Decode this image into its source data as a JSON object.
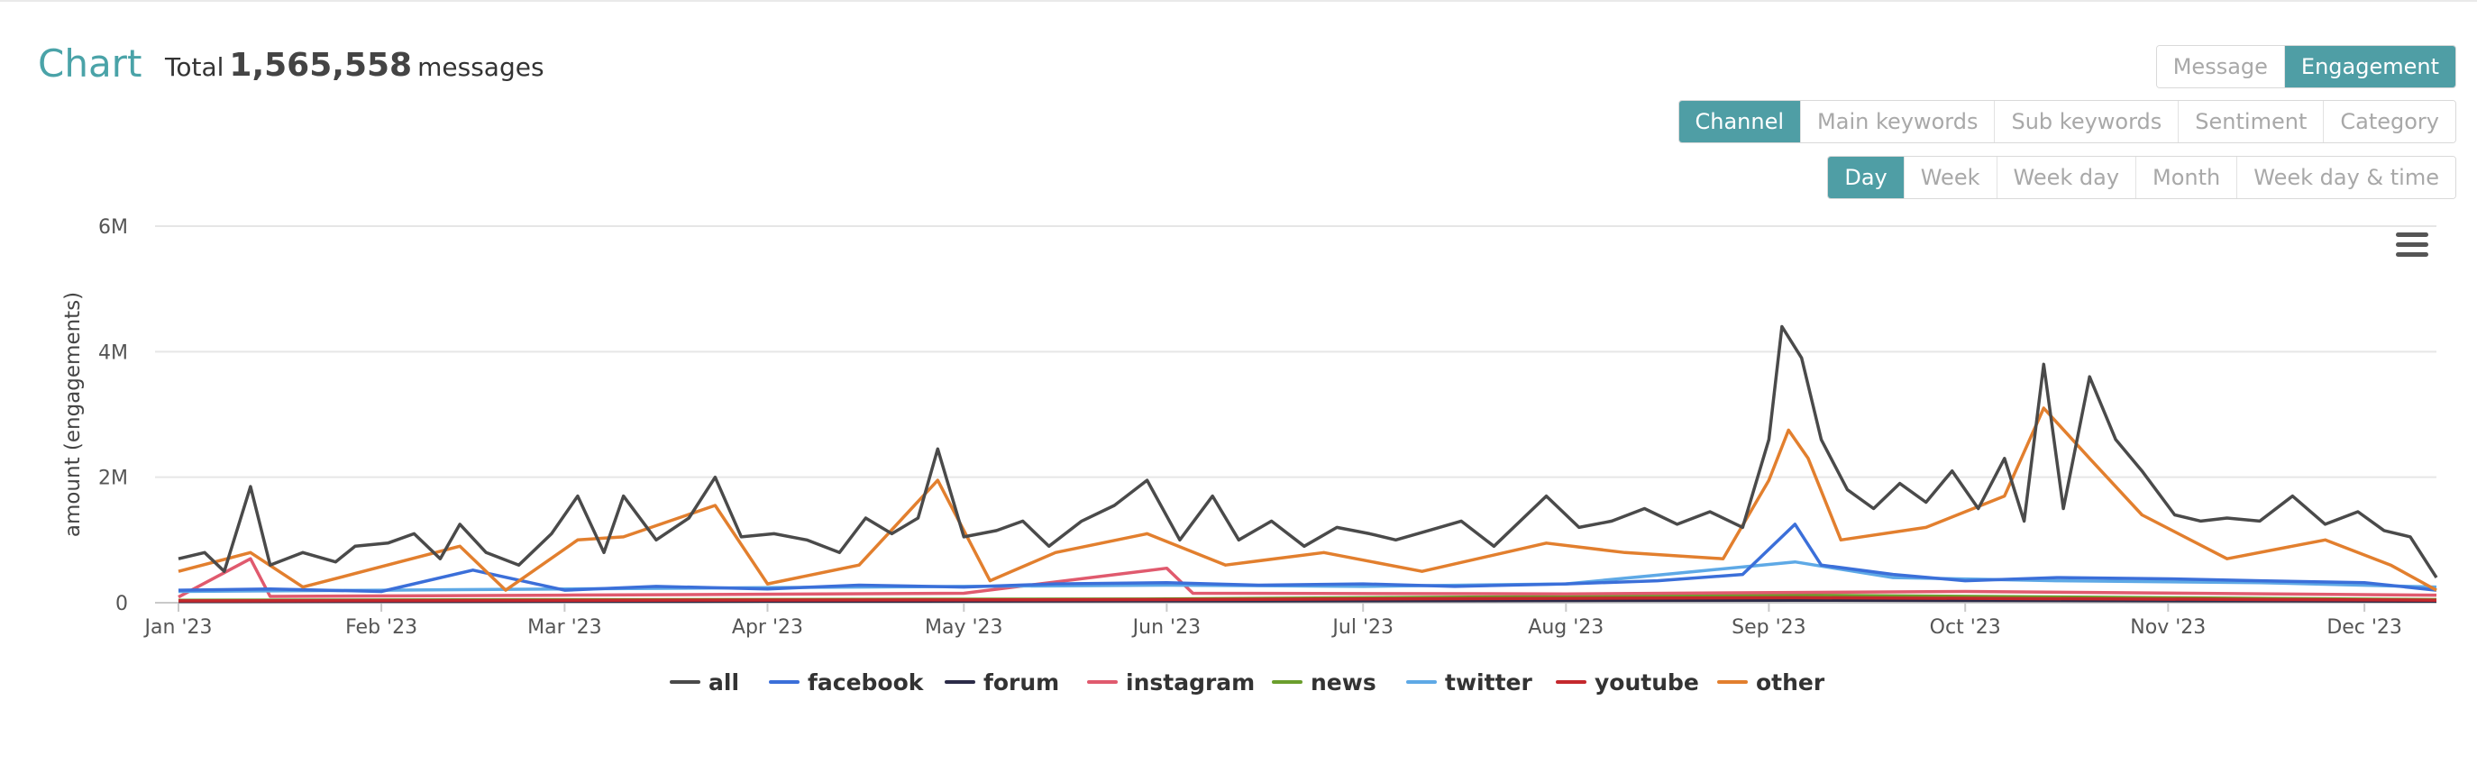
{
  "header": {
    "title": "Chart",
    "total_prefix": "Total",
    "total_value": "1,565,558",
    "total_suffix": "messages"
  },
  "controls": {
    "type_buttons": [
      {
        "label": "Message",
        "active": false
      },
      {
        "label": "Engagement",
        "active": true
      }
    ],
    "group_buttons": [
      {
        "label": "Channel",
        "active": true
      },
      {
        "label": "Main keywords",
        "active": false
      },
      {
        "label": "Sub keywords",
        "active": false
      },
      {
        "label": "Sentiment",
        "active": false
      },
      {
        "label": "Category",
        "active": false
      }
    ],
    "period_buttons": [
      {
        "label": "Day",
        "active": true
      },
      {
        "label": "Week",
        "active": false
      },
      {
        "label": "Week day",
        "active": false
      },
      {
        "label": "Month",
        "active": false
      },
      {
        "label": "Week day & time",
        "active": false
      }
    ]
  },
  "accent_color": "#4f9ea5",
  "chart_data": {
    "type": "line",
    "ylabel": "amount (engagements)",
    "ylim": [
      0,
      6000000
    ],
    "y_ticks": [
      {
        "value": 0,
        "label": "0"
      },
      {
        "value": 2000000,
        "label": "2M"
      },
      {
        "value": 4000000,
        "label": "4M"
      },
      {
        "value": 6000000,
        "label": "6M"
      }
    ],
    "x_ticks": [
      "Jan '23",
      "Feb '23",
      "Mar '23",
      "Apr '23",
      "May '23",
      "Jun '23",
      "Jul '23",
      "Aug '23",
      "Sep '23",
      "Oct '23",
      "Nov '23",
      "Dec '23"
    ],
    "x_range": [
      "2023-01-01",
      "2023-12-12"
    ],
    "grid": true,
    "legend_position": "bottom",
    "series": [
      {
        "name": "all",
        "color": "#4a4a4a",
        "points": [
          [
            "2023-01-01",
            700000
          ],
          [
            "2023-01-05",
            800000
          ],
          [
            "2023-01-08",
            500000
          ],
          [
            "2023-01-12",
            1850000
          ],
          [
            "2023-01-15",
            600000
          ],
          [
            "2023-01-20",
            800000
          ],
          [
            "2023-01-25",
            650000
          ],
          [
            "2023-01-28",
            900000
          ],
          [
            "2023-02-02",
            950000
          ],
          [
            "2023-02-06",
            1100000
          ],
          [
            "2023-02-10",
            700000
          ],
          [
            "2023-02-13",
            1250000
          ],
          [
            "2023-02-17",
            800000
          ],
          [
            "2023-02-22",
            600000
          ],
          [
            "2023-02-27",
            1100000
          ],
          [
            "2023-03-03",
            1700000
          ],
          [
            "2023-03-07",
            800000
          ],
          [
            "2023-03-10",
            1700000
          ],
          [
            "2023-03-15",
            1000000
          ],
          [
            "2023-03-20",
            1350000
          ],
          [
            "2023-03-24",
            2000000
          ],
          [
            "2023-03-28",
            1050000
          ],
          [
            "2023-04-02",
            1100000
          ],
          [
            "2023-04-07",
            1000000
          ],
          [
            "2023-04-12",
            800000
          ],
          [
            "2023-04-16",
            1350000
          ],
          [
            "2023-04-20",
            1100000
          ],
          [
            "2023-04-24",
            1350000
          ],
          [
            "2023-04-27",
            2450000
          ],
          [
            "2023-05-01",
            1050000
          ],
          [
            "2023-05-06",
            1150000
          ],
          [
            "2023-05-10",
            1300000
          ],
          [
            "2023-05-14",
            900000
          ],
          [
            "2023-05-19",
            1300000
          ],
          [
            "2023-05-24",
            1550000
          ],
          [
            "2023-05-29",
            1950000
          ],
          [
            "2023-06-03",
            1000000
          ],
          [
            "2023-06-08",
            1700000
          ],
          [
            "2023-06-12",
            1000000
          ],
          [
            "2023-06-17",
            1300000
          ],
          [
            "2023-06-22",
            900000
          ],
          [
            "2023-06-27",
            1200000
          ],
          [
            "2023-07-02",
            1100000
          ],
          [
            "2023-07-06",
            1000000
          ],
          [
            "2023-07-11",
            1150000
          ],
          [
            "2023-07-16",
            1300000
          ],
          [
            "2023-07-21",
            900000
          ],
          [
            "2023-07-26",
            1400000
          ],
          [
            "2023-07-29",
            1700000
          ],
          [
            "2023-08-03",
            1200000
          ],
          [
            "2023-08-08",
            1300000
          ],
          [
            "2023-08-13",
            1500000
          ],
          [
            "2023-08-18",
            1250000
          ],
          [
            "2023-08-23",
            1450000
          ],
          [
            "2023-08-28",
            1200000
          ],
          [
            "2023-09-01",
            2600000
          ],
          [
            "2023-09-03",
            4400000
          ],
          [
            "2023-09-06",
            3900000
          ],
          [
            "2023-09-09",
            2600000
          ],
          [
            "2023-09-13",
            1800000
          ],
          [
            "2023-09-17",
            1500000
          ],
          [
            "2023-09-21",
            1900000
          ],
          [
            "2023-09-25",
            1600000
          ],
          [
            "2023-09-29",
            2100000
          ],
          [
            "2023-10-03",
            1500000
          ],
          [
            "2023-10-07",
            2300000
          ],
          [
            "2023-10-10",
            1300000
          ],
          [
            "2023-10-13",
            3800000
          ],
          [
            "2023-10-16",
            1500000
          ],
          [
            "2023-10-20",
            3600000
          ],
          [
            "2023-10-24",
            2600000
          ],
          [
            "2023-10-28",
            2100000
          ],
          [
            "2023-11-02",
            1400000
          ],
          [
            "2023-11-06",
            1300000
          ],
          [
            "2023-11-10",
            1350000
          ],
          [
            "2023-11-15",
            1300000
          ],
          [
            "2023-11-20",
            1700000
          ],
          [
            "2023-11-25",
            1250000
          ],
          [
            "2023-11-30",
            1450000
          ],
          [
            "2023-12-04",
            1150000
          ],
          [
            "2023-12-08",
            1050000
          ],
          [
            "2023-12-12",
            400000
          ]
        ]
      },
      {
        "name": "facebook",
        "color": "#3b6fd9",
        "points": [
          [
            "2023-01-01",
            200000
          ],
          [
            "2023-01-15",
            220000
          ],
          [
            "2023-02-01",
            180000
          ],
          [
            "2023-02-15",
            520000
          ],
          [
            "2023-03-01",
            200000
          ],
          [
            "2023-03-15",
            260000
          ],
          [
            "2023-04-01",
            220000
          ],
          [
            "2023-04-15",
            280000
          ],
          [
            "2023-05-01",
            250000
          ],
          [
            "2023-05-15",
            300000
          ],
          [
            "2023-06-01",
            320000
          ],
          [
            "2023-06-15",
            280000
          ],
          [
            "2023-07-01",
            300000
          ],
          [
            "2023-07-15",
            260000
          ],
          [
            "2023-08-01",
            300000
          ],
          [
            "2023-08-15",
            350000
          ],
          [
            "2023-08-28",
            450000
          ],
          [
            "2023-09-05",
            1250000
          ],
          [
            "2023-09-09",
            600000
          ],
          [
            "2023-09-20",
            450000
          ],
          [
            "2023-10-01",
            350000
          ],
          [
            "2023-10-15",
            400000
          ],
          [
            "2023-11-01",
            380000
          ],
          [
            "2023-11-15",
            350000
          ],
          [
            "2023-12-01",
            320000
          ],
          [
            "2023-12-12",
            200000
          ]
        ]
      },
      {
        "name": "forum",
        "color": "#2b2b48",
        "points": [
          [
            "2023-01-01",
            20000
          ],
          [
            "2023-04-01",
            25000
          ],
          [
            "2023-07-01",
            30000
          ],
          [
            "2023-09-05",
            40000
          ],
          [
            "2023-12-12",
            25000
          ]
        ]
      },
      {
        "name": "instagram",
        "color": "#e05a6e",
        "points": [
          [
            "2023-01-01",
            90000
          ],
          [
            "2023-01-12",
            700000
          ],
          [
            "2023-01-15",
            100000
          ],
          [
            "2023-03-01",
            120000
          ],
          [
            "2023-05-01",
            150000
          ],
          [
            "2023-06-01",
            550000
          ],
          [
            "2023-06-05",
            150000
          ],
          [
            "2023-08-01",
            140000
          ],
          [
            "2023-10-01",
            180000
          ],
          [
            "2023-12-12",
            120000
          ]
        ]
      },
      {
        "name": "news",
        "color": "#6b9e2d",
        "points": [
          [
            "2023-01-01",
            40000
          ],
          [
            "2023-06-01",
            60000
          ],
          [
            "2023-09-05",
            120000
          ],
          [
            "2023-12-12",
            50000
          ]
        ]
      },
      {
        "name": "twitter",
        "color": "#5ea9e6",
        "points": [
          [
            "2023-01-01",
            180000
          ],
          [
            "2023-02-01",
            200000
          ],
          [
            "2023-03-01",
            220000
          ],
          [
            "2023-04-01",
            240000
          ],
          [
            "2023-05-01",
            260000
          ],
          [
            "2023-06-01",
            280000
          ],
          [
            "2023-07-01",
            260000
          ],
          [
            "2023-08-01",
            300000
          ],
          [
            "2023-09-05",
            650000
          ],
          [
            "2023-09-20",
            400000
          ],
          [
            "2023-10-15",
            350000
          ],
          [
            "2023-11-15",
            320000
          ],
          [
            "2023-12-12",
            250000
          ]
        ]
      },
      {
        "name": "youtube",
        "color": "#c4282d",
        "points": [
          [
            "2023-01-01",
            30000
          ],
          [
            "2023-06-01",
            50000
          ],
          [
            "2023-09-05",
            80000
          ],
          [
            "2023-12-12",
            40000
          ]
        ]
      },
      {
        "name": "other",
        "color": "#e27f2e",
        "points": [
          [
            "2023-01-01",
            500000
          ],
          [
            "2023-01-12",
            800000
          ],
          [
            "2023-01-20",
            250000
          ],
          [
            "2023-02-13",
            900000
          ],
          [
            "2023-02-20",
            200000
          ],
          [
            "2023-03-03",
            1000000
          ],
          [
            "2023-03-10",
            1050000
          ],
          [
            "2023-03-24",
            1550000
          ],
          [
            "2023-04-01",
            300000
          ],
          [
            "2023-04-15",
            600000
          ],
          [
            "2023-04-27",
            1950000
          ],
          [
            "2023-05-05",
            350000
          ],
          [
            "2023-05-15",
            800000
          ],
          [
            "2023-05-29",
            1100000
          ],
          [
            "2023-06-10",
            600000
          ],
          [
            "2023-06-25",
            800000
          ],
          [
            "2023-07-10",
            500000
          ],
          [
            "2023-07-29",
            950000
          ],
          [
            "2023-08-10",
            800000
          ],
          [
            "2023-08-25",
            700000
          ],
          [
            "2023-09-01",
            1950000
          ],
          [
            "2023-09-04",
            2750000
          ],
          [
            "2023-09-07",
            2300000
          ],
          [
            "2023-09-12",
            1000000
          ],
          [
            "2023-09-25",
            1200000
          ],
          [
            "2023-10-07",
            1700000
          ],
          [
            "2023-10-13",
            3100000
          ],
          [
            "2023-10-20",
            2300000
          ],
          [
            "2023-10-28",
            1400000
          ],
          [
            "2023-11-10",
            700000
          ],
          [
            "2023-11-25",
            1000000
          ],
          [
            "2023-12-05",
            600000
          ],
          [
            "2023-12-12",
            200000
          ]
        ]
      }
    ]
  }
}
